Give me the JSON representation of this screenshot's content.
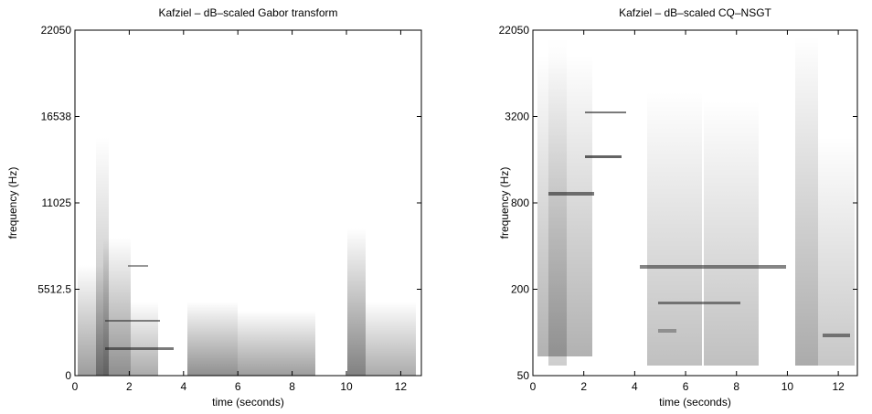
{
  "chart_data": [
    {
      "type": "spectrogram",
      "title": "Kafziel – dB–scaled Gabor transform",
      "xlabel": "time (seconds)",
      "ylabel": "frequency (Hz)",
      "xlim": [
        0,
        12.76
      ],
      "xticks": [
        0,
        2,
        4,
        6,
        8,
        10,
        12
      ],
      "ylim": [
        0,
        22050
      ],
      "yticks": [
        0,
        5512.5,
        11025,
        16538,
        22050
      ]
    },
    {
      "type": "spectrogram",
      "title": "Kafziel – dB–scaled CQ–NSGT",
      "xlabel": "time (seconds)",
      "ylabel": "frequency (Hz)",
      "xlim": [
        0,
        12.75
      ],
      "xticks": [
        0,
        2,
        4,
        6,
        8,
        10,
        12
      ],
      "ytick_labels": [
        "50",
        "200",
        "800",
        "3200",
        "22050"
      ]
    }
  ]
}
